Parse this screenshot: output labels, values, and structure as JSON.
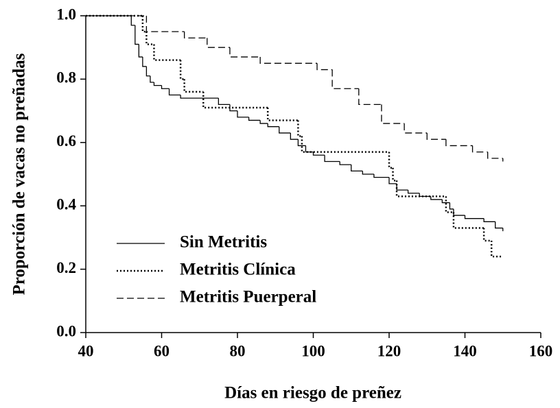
{
  "chart_data": {
    "type": "step",
    "xlabel": "Días en riesgo de preñez",
    "ylabel": "Proporción de vacas no preñadas",
    "xlim": [
      40,
      160
    ],
    "xticks": [
      40,
      60,
      80,
      100,
      120,
      140,
      160
    ],
    "ylim": [
      0,
      1
    ],
    "yticks": [
      {
        "value": 0,
        "label": "0.0"
      },
      0.2,
      0.4,
      0.6,
      0.8,
      {
        "value": 1,
        "label": "1.0"
      }
    ],
    "series": [
      {
        "name": "Sin Metritis",
        "color": "#000000",
        "dash": "solid",
        "x": [
          40,
          52,
          53,
          54,
          55,
          56,
          57,
          58,
          60,
          62,
          65,
          75,
          78,
          80,
          83,
          86,
          88,
          91,
          94,
          96,
          98,
          100,
          103,
          107,
          110,
          113,
          116,
          120,
          122,
          125,
          128,
          131,
          134,
          136,
          137,
          140,
          145,
          148,
          150
        ],
        "values": [
          1.0,
          0.97,
          0.91,
          0.87,
          0.84,
          0.81,
          0.79,
          0.78,
          0.77,
          0.75,
          0.74,
          0.72,
          0.7,
          0.68,
          0.67,
          0.66,
          0.65,
          0.63,
          0.61,
          0.59,
          0.57,
          0.56,
          0.54,
          0.53,
          0.51,
          0.5,
          0.49,
          0.47,
          0.45,
          0.44,
          0.43,
          0.42,
          0.41,
          0.39,
          0.37,
          0.36,
          0.35,
          0.33,
          0.32
        ]
      },
      {
        "name": "Metritis Clínica",
        "color": "#000000",
        "dash": "dotted",
        "x": [
          40,
          55,
          56,
          58,
          65,
          66,
          71,
          88,
          96,
          97,
          120,
          121,
          122,
          135,
          137,
          145,
          147,
          150
        ],
        "values": [
          1.0,
          0.95,
          0.91,
          0.86,
          0.8,
          0.76,
          0.71,
          0.67,
          0.62,
          0.57,
          0.52,
          0.48,
          0.43,
          0.38,
          0.33,
          0.29,
          0.24,
          0.24
        ]
      },
      {
        "name": "Metritis Puerperal",
        "color": "#000000",
        "dash": "dashed",
        "x": [
          40,
          56,
          66,
          72,
          78,
          86,
          101,
          105,
          112,
          118,
          124,
          130,
          135,
          142,
          146,
          150
        ],
        "values": [
          1.0,
          0.95,
          0.93,
          0.9,
          0.87,
          0.85,
          0.83,
          0.77,
          0.72,
          0.66,
          0.63,
          0.61,
          0.59,
          0.57,
          0.55,
          0.54
        ]
      }
    ]
  }
}
